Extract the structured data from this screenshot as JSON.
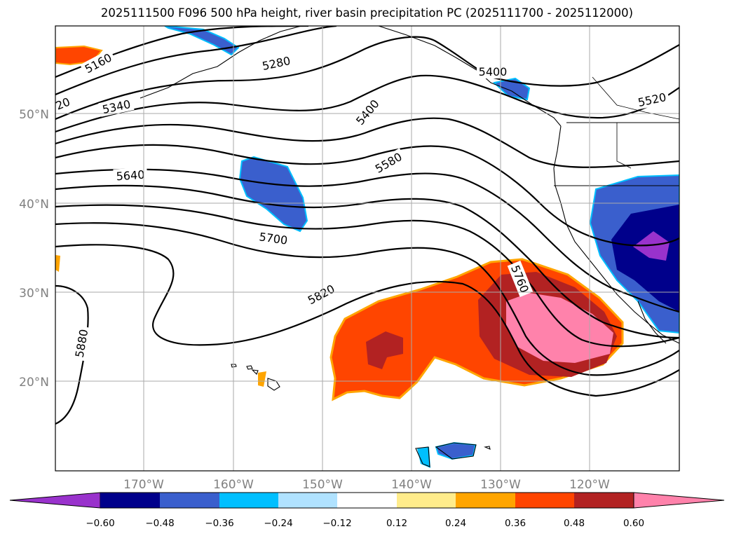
{
  "title": "2025111500 F096 500 hPa height, river basin precipitation PC (2025111700 - 2025112000)",
  "map": {
    "lat_labels": [
      "50°N",
      "40°N",
      "30°N",
      "20°N"
    ],
    "lon_labels": [
      "170°W",
      "160°W",
      "150°W",
      "140°W",
      "130°W",
      "120°W"
    ],
    "contour_labels": [
      "5160",
      "5280",
      "5400",
      "5520",
      "5340",
      "5400",
      "5580",
      "5640",
      "5700",
      "5820",
      "5760",
      "5880",
      "20"
    ]
  },
  "colorbar": {
    "colors": [
      "#9932cc",
      "#00008b",
      "#3a5fcd",
      "#00bfff",
      "#b0e2ff",
      "#ffffff",
      "#ffec8b",
      "#ffa500",
      "#ff4500",
      "#b22222",
      "#ff82ab"
    ],
    "tick_labels": [
      "−0.60",
      "−0.48",
      "−0.36",
      "−0.24",
      "−0.12",
      "0.12",
      "0.24",
      "0.36",
      "0.48",
      "0.60"
    ]
  }
}
